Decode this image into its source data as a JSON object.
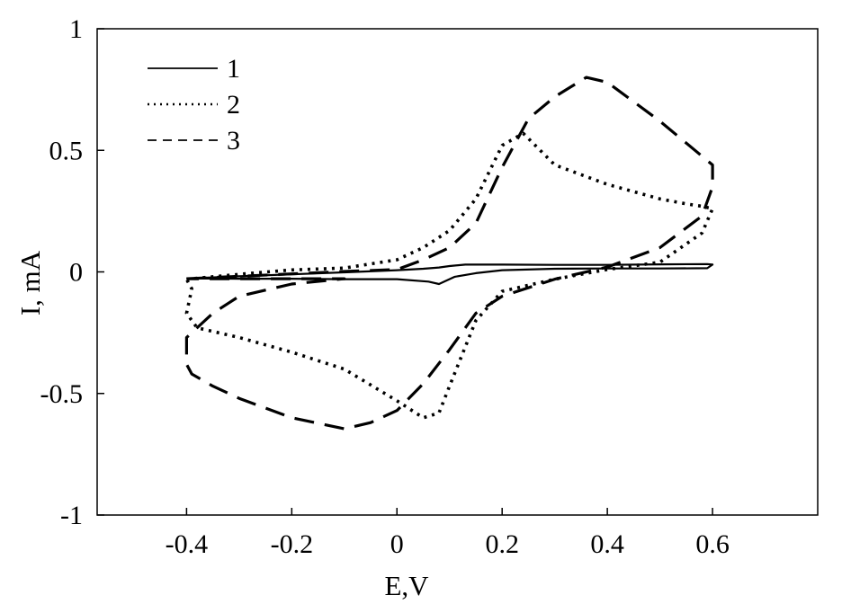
{
  "chart_data": {
    "type": "line",
    "title": "",
    "xlabel": "E,V",
    "ylabel": "I, mA",
    "xlim": [
      -0.57,
      0.8
    ],
    "ylim": [
      -1,
      1
    ],
    "x_ticks": [
      -0.4,
      -0.2,
      0,
      0.2,
      0.4,
      0.6
    ],
    "x_tick_labels": [
      "-0.4",
      "-0.2",
      "0",
      "0.2",
      "0.4",
      "0.6"
    ],
    "y_ticks": [
      1,
      0.5,
      0,
      -0.5,
      -1
    ],
    "y_tick_labels": [
      "1",
      "0.5",
      "0",
      "-0.5",
      "-1"
    ],
    "grid": false,
    "legend_position": "top-left",
    "series": [
      {
        "name": "1",
        "line_style": "solid",
        "x": [
          -0.4,
          -0.3,
          -0.2,
          -0.1,
          0.0,
          0.05,
          0.08,
          0.1,
          0.13,
          0.2,
          0.3,
          0.4,
          0.5,
          0.59,
          0.6,
          0.59,
          0.5,
          0.4,
          0.3,
          0.2,
          0.15,
          0.11,
          0.09,
          0.08,
          0.06,
          0.0,
          -0.1,
          -0.2,
          -0.3,
          -0.4
        ],
        "y": [
          -0.027,
          -0.018,
          -0.01,
          -0.002,
          0.007,
          0.013,
          0.018,
          0.024,
          0.03,
          0.03,
          0.029,
          0.029,
          0.031,
          0.032,
          0.03,
          0.015,
          0.014,
          0.014,
          0.013,
          0.007,
          -0.005,
          -0.02,
          -0.04,
          -0.05,
          -0.04,
          -0.03,
          -0.03,
          -0.028,
          -0.028,
          -0.027
        ]
      },
      {
        "name": "2",
        "line_style": "dotted",
        "x": [
          -0.4,
          -0.3,
          -0.2,
          -0.1,
          0.0,
          0.05,
          0.1,
          0.15,
          0.2,
          0.24,
          0.3,
          0.4,
          0.5,
          0.55,
          0.58,
          0.6,
          0.58,
          0.5,
          0.4,
          0.3,
          0.2,
          0.15,
          0.1,
          0.08,
          0.05,
          0.0,
          -0.1,
          -0.2,
          -0.3,
          -0.38,
          -0.4,
          -0.39,
          -0.4
        ],
        "y": [
          -0.03,
          -0.01,
          0.008,
          0.016,
          0.05,
          0.1,
          0.17,
          0.3,
          0.52,
          0.57,
          0.44,
          0.36,
          0.3,
          0.28,
          0.27,
          0.26,
          0.16,
          0.04,
          0.01,
          -0.03,
          -0.08,
          -0.2,
          -0.47,
          -0.58,
          -0.6,
          -0.53,
          -0.4,
          -0.33,
          -0.27,
          -0.23,
          -0.17,
          -0.07,
          -0.03
        ]
      },
      {
        "name": "3",
        "line_style": "dashed",
        "x": [
          -0.4,
          -0.3,
          -0.2,
          -0.1,
          0.0,
          0.05,
          0.1,
          0.15,
          0.2,
          0.25,
          0.3,
          0.36,
          0.4,
          0.5,
          0.6,
          0.6,
          0.58,
          0.5,
          0.4,
          0.3,
          0.2,
          0.15,
          0.1,
          0.05,
          0.0,
          -0.05,
          -0.1,
          -0.2,
          -0.3,
          -0.35,
          -0.39,
          -0.4,
          -0.4,
          -0.35,
          -0.3,
          -0.2,
          -0.1,
          -0.4
        ],
        "y": [
          -0.028,
          -0.018,
          -0.008,
          0.002,
          0.01,
          0.05,
          0.1,
          0.2,
          0.43,
          0.63,
          0.72,
          0.8,
          0.78,
          0.62,
          0.44,
          0.35,
          0.23,
          0.1,
          0.02,
          -0.03,
          -0.1,
          -0.17,
          -0.32,
          -0.46,
          -0.57,
          -0.62,
          -0.645,
          -0.6,
          -0.52,
          -0.47,
          -0.42,
          -0.38,
          -0.27,
          -0.17,
          -0.1,
          -0.05,
          -0.028,
          -0.028
        ]
      }
    ]
  }
}
